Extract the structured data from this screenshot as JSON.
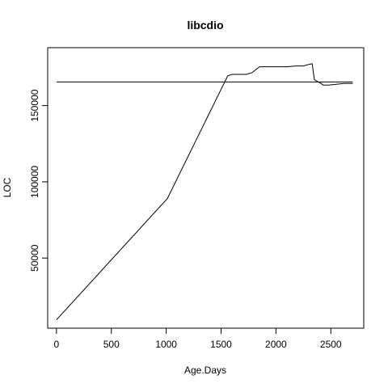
{
  "chart_data": {
    "type": "line",
    "title": "libcdio",
    "xlabel": "Age.Days",
    "ylabel": "LOC",
    "xlim": [
      -80,
      2800
    ],
    "ylim": [
      4000,
      188000
    ],
    "x_ticks": [
      0,
      500,
      1000,
      1500,
      2000,
      2500
    ],
    "y_ticks": [
      50000,
      100000,
      150000
    ],
    "grid": false,
    "legend": "none",
    "series": [
      {
        "values": [
          {
            "x": 0,
            "y": 9500
          },
          {
            "x": 1010,
            "y": 89000
          },
          {
            "x": 1560,
            "y": 169500
          },
          {
            "x": 1600,
            "y": 170500
          },
          {
            "x": 1730,
            "y": 170500
          },
          {
            "x": 1780,
            "y": 171500
          },
          {
            "x": 1850,
            "y": 175500
          },
          {
            "x": 1960,
            "y": 175500
          },
          {
            "x": 2100,
            "y": 175500
          },
          {
            "x": 2180,
            "y": 176000
          },
          {
            "x": 2250,
            "y": 176000
          },
          {
            "x": 2300,
            "y": 177000
          },
          {
            "x": 2330,
            "y": 177500
          },
          {
            "x": 2350,
            "y": 167000
          },
          {
            "x": 2400,
            "y": 165000
          },
          {
            "x": 2430,
            "y": 163500
          },
          {
            "x": 2480,
            "y": 163500
          },
          {
            "x": 2550,
            "y": 164000
          },
          {
            "x": 2620,
            "y": 164500
          },
          {
            "x": 2700,
            "y": 164500
          }
        ]
      },
      {
        "values": [
          {
            "x": 0,
            "y": 165500
          },
          {
            "x": 2700,
            "y": 165500
          }
        ]
      }
    ]
  }
}
